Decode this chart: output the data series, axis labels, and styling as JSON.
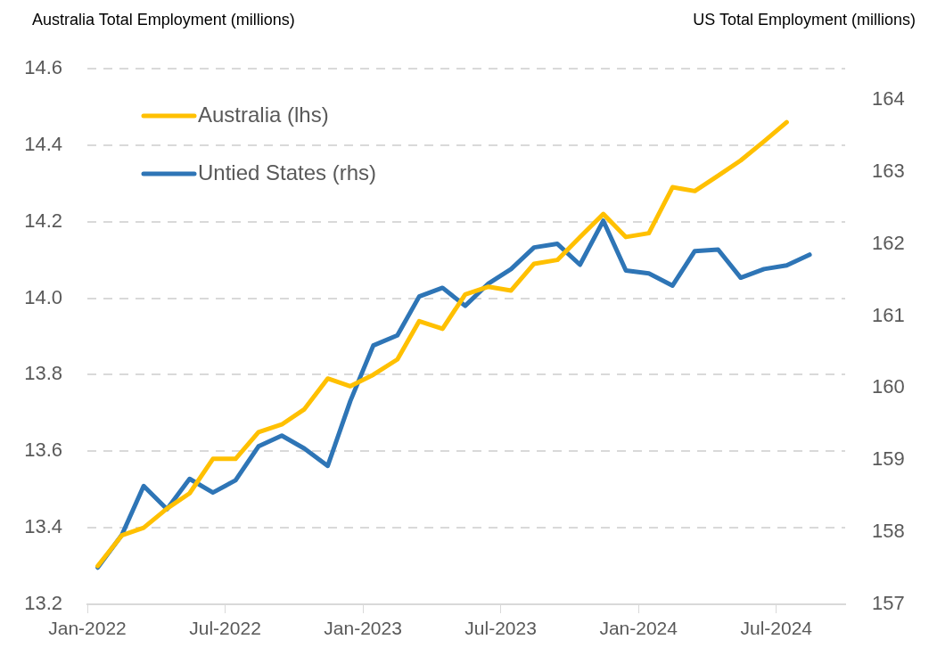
{
  "chart_data": {
    "type": "line",
    "ylabel": "Australia Total Employment (millions)",
    "y2label": "US Total Employment (millions)",
    "x": [
      "2022-01-15",
      "2022-02-15",
      "2022-03-15",
      "2022-04-15",
      "2022-05-15",
      "2022-06-15",
      "2022-07-15",
      "2022-08-15",
      "2022-09-15",
      "2022-10-15",
      "2022-11-15",
      "2022-12-15",
      "2023-01-15",
      "2023-02-15",
      "2023-03-15",
      "2023-04-15",
      "2023-05-15",
      "2023-06-15",
      "2023-07-15",
      "2023-08-15",
      "2023-09-15",
      "2023-10-15",
      "2023-11-15",
      "2023-12-15",
      "2024-01-15",
      "2024-02-15",
      "2024-03-15",
      "2024-04-15",
      "2024-05-15",
      "2024-06-15",
      "2024-07-15",
      "2024-08-15"
    ],
    "series": [
      {
        "name": "Australia (lhs)",
        "color": "#ffc000",
        "values": [
          13.3,
          13.38,
          13.4,
          13.45,
          13.49,
          13.58,
          13.58,
          13.65,
          13.67,
          13.71,
          13.79,
          13.77,
          13.8,
          13.84,
          13.94,
          13.92,
          14.01,
          14.03,
          14.02,
          14.09,
          14.1,
          14.16,
          14.22,
          14.16,
          14.17,
          14.29,
          14.28,
          14.32,
          14.36,
          14.41,
          14.46,
          null
        ]
      },
      {
        "name": "Untied States (rhs)",
        "color": "#2e75b6",
        "axis": "y2",
        "values": [
          157.51,
          157.96,
          158.64,
          158.32,
          158.74,
          158.55,
          158.72,
          159.19,
          159.34,
          159.16,
          158.92,
          159.82,
          160.59,
          160.73,
          161.27,
          161.39,
          161.14,
          161.45,
          161.65,
          161.95,
          162.0,
          161.71,
          162.32,
          161.63,
          161.59,
          161.42,
          161.9,
          161.92,
          161.53,
          161.65,
          161.7,
          161.85
        ]
      }
    ],
    "xlim": [
      "2022-01-01",
      "2024-10-01"
    ],
    "xticks": [
      {
        "value": "2022-01-01",
        "label": "Jan-2022"
      },
      {
        "value": "2022-07-01",
        "label": "Jul-2022"
      },
      {
        "value": "2023-01-01",
        "label": "Jan-2023"
      },
      {
        "value": "2023-07-01",
        "label": "Jul-2023"
      },
      {
        "value": "2024-01-01",
        "label": "Jan-2024"
      },
      {
        "value": "2024-07-01",
        "label": "Jul-2024"
      }
    ],
    "ylim": [
      13.2,
      14.6
    ],
    "yticks": [
      {
        "value": 13.2,
        "label": "13.2"
      },
      {
        "value": 13.4,
        "label": "13.4"
      },
      {
        "value": 13.6,
        "label": "13.6"
      },
      {
        "value": 13.8,
        "label": "13.8"
      },
      {
        "value": 14.0,
        "label": "14.0"
      },
      {
        "value": 14.2,
        "label": "14.2"
      },
      {
        "value": 14.4,
        "label": "14.4"
      },
      {
        "value": 14.6,
        "label": "14.6"
      }
    ],
    "y2lim": [
      157,
      164.43
    ],
    "y2ticks": [
      157,
      158,
      159,
      160,
      161,
      162,
      163,
      164
    ],
    "grid": "y",
    "legend": "top left",
    "marker": "none",
    "line_style": "solid"
  }
}
